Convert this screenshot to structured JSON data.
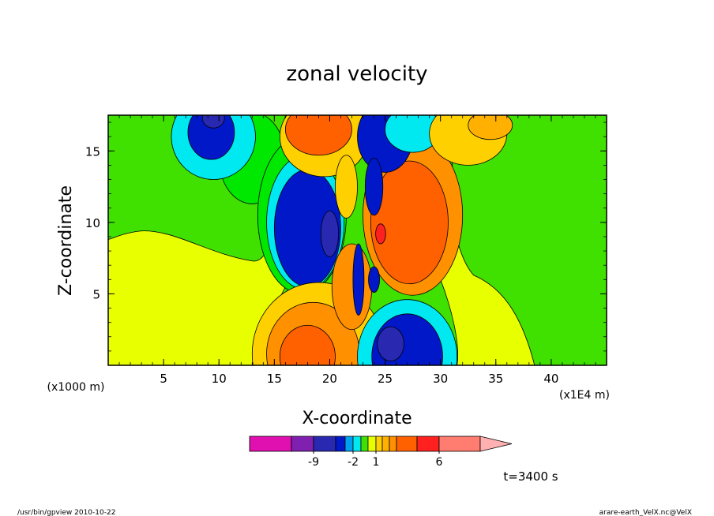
{
  "chart_data": {
    "type": "heatmap",
    "title": "zonal velocity",
    "xlabel": "X-coordinate",
    "ylabel": "Z-coordinate",
    "x_unit": "(x1E4 m)",
    "y_unit": "(x1000 m)",
    "x_ticks": [
      5,
      10,
      15,
      20,
      25,
      30,
      35,
      40
    ],
    "y_ticks": [
      5,
      10,
      15
    ],
    "xlim": [
      0,
      45
    ],
    "ylim": [
      0,
      17.5
    ],
    "time_label": "t=3400 s",
    "colorbar": {
      "tick_labels": [
        {
          "label": "-9",
          "index": 2
        },
        {
          "label": "-2",
          "index": 5
        },
        {
          "label": "1",
          "index": 8
        },
        {
          "label": "6",
          "index": 13
        }
      ],
      "colors": [
        "#e010b0",
        "#8020b0",
        "#2828b0",
        "#0018c8",
        "#00a0f0",
        "#00e8f0",
        "#40e000",
        "#e8ff00",
        "#ffd000",
        "#ffb000",
        "#ff9000",
        "#ff6000",
        "#ff2020",
        "#ff7c70",
        "#ffb0b0"
      ]
    },
    "regions": [
      {
        "color": "#00e800",
        "shape": "ellipse",
        "cx": 13.0,
        "cy": 14.5,
        "rx": 3.0,
        "ry": 3.2
      },
      {
        "color": "#00e8f0",
        "shape": "ellipse",
        "cx": 9.5,
        "cy": 16.0,
        "rx": 3.8,
        "ry": 3.0
      },
      {
        "color": "#0018c8",
        "shape": "ellipse",
        "cx": 9.3,
        "cy": 16.3,
        "rx": 2.1,
        "ry": 1.9
      },
      {
        "color": "#2828b0",
        "shape": "ellipse",
        "cx": 9.5,
        "cy": 17.3,
        "rx": 1.0,
        "ry": 0.7
      },
      {
        "color": "#00e800",
        "shape": "ellipse",
        "cx": 17.5,
        "cy": 10.5,
        "rx": 4.0,
        "ry": 5.5
      },
      {
        "color": "#00e8f0",
        "shape": "ellipse",
        "cx": 17.8,
        "cy": 10.0,
        "rx": 3.5,
        "ry": 4.7
      },
      {
        "color": "#0018c8",
        "shape": "ellipse",
        "cx": 18.0,
        "cy": 9.6,
        "rx": 3.0,
        "ry": 4.1
      },
      {
        "color": "#2828b0",
        "shape": "ellipse",
        "cx": 20.0,
        "cy": 9.2,
        "rx": 0.8,
        "ry": 1.6
      },
      {
        "color": "#ff9000",
        "shape": "ellipse",
        "cx": 27.5,
        "cy": 10.5,
        "rx": 4.5,
        "ry": 5.6
      },
      {
        "color": "#ff6000",
        "shape": "ellipse",
        "cx": 27.2,
        "cy": 10.0,
        "rx": 3.5,
        "ry": 4.3
      },
      {
        "color": "#ff2020",
        "shape": "ellipse",
        "cx": 24.6,
        "cy": 9.2,
        "rx": 0.45,
        "ry": 0.7
      },
      {
        "color": "#ffd000",
        "shape": "ellipse",
        "cx": 19.5,
        "cy": 16.0,
        "rx": 4.0,
        "ry": 2.8
      },
      {
        "color": "#ff6000",
        "shape": "ellipse",
        "cx": 19.0,
        "cy": 16.5,
        "rx": 3.0,
        "ry": 1.8
      },
      {
        "color": "#0018c8",
        "shape": "ellipse",
        "cx": 25.0,
        "cy": 16.0,
        "rx": 2.5,
        "ry": 2.5
      },
      {
        "color": "#00e8f0",
        "shape": "ellipse",
        "cx": 27.5,
        "cy": 16.5,
        "rx": 2.5,
        "ry": 1.6
      },
      {
        "color": "#ffd000",
        "shape": "ellipse",
        "cx": 21.5,
        "cy": 12.5,
        "rx": 1.0,
        "ry": 2.2
      },
      {
        "color": "#0018c8",
        "shape": "ellipse",
        "cx": 24.0,
        "cy": 12.5,
        "rx": 0.8,
        "ry": 2.0
      },
      {
        "color": "#ffd000",
        "shape": "ellipse",
        "cx": 32.5,
        "cy": 16.2,
        "rx": 3.5,
        "ry": 2.2
      },
      {
        "color": "#ffb000",
        "shape": "ellipse",
        "cx": 34.5,
        "cy": 16.8,
        "rx": 2.0,
        "ry": 1.0
      },
      {
        "color": "#ffd000",
        "shape": "ellipse",
        "cx": 19.0,
        "cy": 0.8,
        "rx": 6.0,
        "ry": 5.0
      },
      {
        "color": "#ff9000",
        "shape": "ellipse",
        "cx": 18.5,
        "cy": 0.8,
        "rx": 4.2,
        "ry": 3.6
      },
      {
        "color": "#ff6000",
        "shape": "ellipse",
        "cx": 18.0,
        "cy": 0.6,
        "rx": 2.5,
        "ry": 2.2
      },
      {
        "color": "#00e8f0",
        "shape": "ellipse",
        "cx": 27.0,
        "cy": 0.6,
        "rx": 4.5,
        "ry": 4.0
      },
      {
        "color": "#0018c8",
        "shape": "ellipse",
        "cx": 27.0,
        "cy": 0.6,
        "rx": 3.2,
        "ry": 3.0
      },
      {
        "color": "#2828b0",
        "shape": "ellipse",
        "cx": 25.5,
        "cy": 1.5,
        "rx": 1.2,
        "ry": 1.2
      },
      {
        "color": "#ff9000",
        "shape": "ellipse",
        "cx": 22.0,
        "cy": 5.5,
        "rx": 1.8,
        "ry": 3.0
      },
      {
        "color": "#0018c8",
        "shape": "ellipse",
        "cx": 22.6,
        "cy": 6.0,
        "rx": 0.5,
        "ry": 2.5
      },
      {
        "color": "#0018c8",
        "shape": "ellipse",
        "cx": 24.0,
        "cy": 6.0,
        "rx": 0.5,
        "ry": 0.9
      }
    ]
  },
  "footer": {
    "left": "/usr/bin/gpview   2010-10-22",
    "right": "arare-earth_VelX.nc@VelX"
  }
}
